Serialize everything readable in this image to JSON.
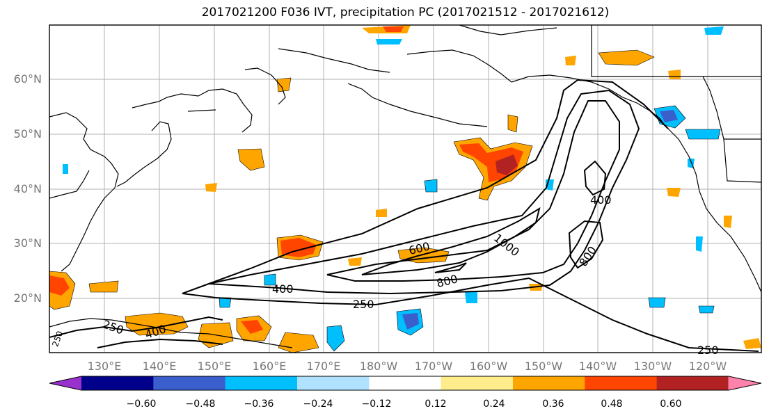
{
  "title": "2017021200 F036 IVT, precipitation PC (2017021512 - 2017021612)",
  "lat_labels": [
    "60°N",
    "50°N",
    "40°N",
    "30°N",
    "20°N"
  ],
  "lon_labels": [
    "130°E",
    "140°E",
    "150°E",
    "160°E",
    "170°E",
    "180°W",
    "170°W",
    "160°W",
    "150°W",
    "140°W",
    "130°W",
    "120°W"
  ],
  "ivt_contour_labels": [
    "250",
    "400",
    "600",
    "800",
    "1000",
    "800",
    "400",
    "250",
    "400",
    "250",
    "250"
  ],
  "colorbar": {
    "ticks": [
      "−0.60",
      "−0.48",
      "−0.36",
      "−0.24",
      "−0.12",
      "0.12",
      "0.24",
      "0.36",
      "0.48",
      "0.60"
    ],
    "colors": [
      "#9932cc",
      "#00008b",
      "#3a5fcd",
      "#00bfff",
      "#b0e2ff",
      "#ffffff",
      "#ffec8b",
      "#ffa500",
      "#ff4500",
      "#b22222",
      "#ff82ab"
    ]
  },
  "colors": {
    "land": "#000000",
    "grid": "#b0b0b0",
    "contour": "#000000"
  }
}
